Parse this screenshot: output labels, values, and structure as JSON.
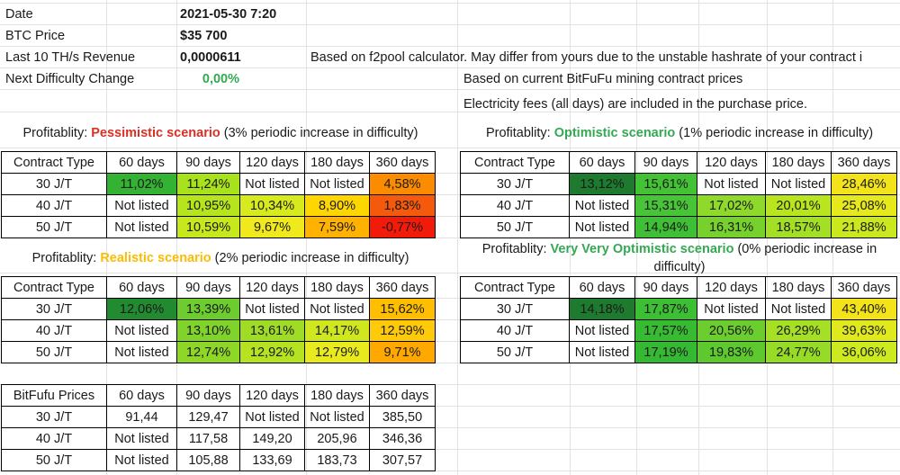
{
  "info": {
    "date_label": "Date",
    "date_value": "2021-05-30 7:20",
    "btc_label": "BTC Price",
    "btc_value": "$35 700",
    "rev_label": "Last 10 TH/s Revenue",
    "rev_value": "0,0000611",
    "rev_note": "Based on f2pool calculator. May differ from yours due to the unstable hashrate of your contract i",
    "diff_label": "Next Difficulty Change",
    "diff_value": "0,00%",
    "note_prices": "Based on current BitFuFu mining contract prices",
    "note_fees": "Electricity fees (all days) are included in the purchase price."
  },
  "header_row": [
    "Contract Type",
    "60 days",
    "90 days",
    "120 days",
    "180 days",
    "360 days"
  ],
  "prices_header_row": [
    "BitFufu Prices",
    "60 days",
    "90 days",
    "120 days",
    "180 days",
    "360 days"
  ],
  "pessimistic": {
    "prefix": "Profitablity: ",
    "name": "Pessimistic scenario",
    "suffix": " (3% periodic increase in difficulty)",
    "name_color": "#d93025",
    "rows": [
      {
        "type": "30 J/T",
        "cells": [
          {
            "v": "11,02%",
            "bg": "#34b233"
          },
          {
            "v": "11,24%",
            "bg": "#a8e21c"
          },
          {
            "v": "Not listed",
            "bg": "#ffffff"
          },
          {
            "v": "Not listed",
            "bg": "#ffffff"
          },
          {
            "v": "4,58%",
            "bg": "#fb8c00"
          }
        ]
      },
      {
        "type": "40 J/T",
        "cells": [
          {
            "v": "Not listed",
            "bg": "#ffffff"
          },
          {
            "v": "10,95%",
            "bg": "#b7e51d"
          },
          {
            "v": "10,34%",
            "bg": "#d7ea1e"
          },
          {
            "v": "8,90%",
            "bg": "#ffd700"
          },
          {
            "v": "1,83%",
            "bg": "#f55a0c"
          }
        ]
      },
      {
        "type": "50 J/T",
        "cells": [
          {
            "v": "Not listed",
            "bg": "#ffffff"
          },
          {
            "v": "10,59%",
            "bg": "#c8e81e"
          },
          {
            "v": "9,67%",
            "bg": "#f0e91b"
          },
          {
            "v": "7,59%",
            "bg": "#ffb300"
          },
          {
            "v": "-0,77%",
            "bg": "#f21b0a"
          }
        ]
      }
    ]
  },
  "optimistic": {
    "prefix": "Profitablity: ",
    "name": "Optimistic scenario",
    "suffix": " (1% periodic increase in difficulty)",
    "name_color": "#34a853",
    "rows": [
      {
        "type": "30 J/T",
        "cells": [
          {
            "v": "13,12%",
            "bg": "#1e7a2e"
          },
          {
            "v": "15,61%",
            "bg": "#44c236"
          },
          {
            "v": "Not listed",
            "bg": "#ffffff"
          },
          {
            "v": "Not listed",
            "bg": "#ffffff"
          },
          {
            "v": "28,46%",
            "bg": "#f2e31b"
          }
        ]
      },
      {
        "type": "40 J/T",
        "cells": [
          {
            "v": "Not listed",
            "bg": "#ffffff"
          },
          {
            "v": "15,31%",
            "bg": "#48c438"
          },
          {
            "v": "17,02%",
            "bg": "#8fd92a"
          },
          {
            "v": "20,01%",
            "bg": "#b9e51f"
          },
          {
            "v": "25,08%",
            "bg": "#e6ea1c"
          }
        ]
      },
      {
        "type": "50 J/T",
        "cells": [
          {
            "v": "Not listed",
            "bg": "#ffffff"
          },
          {
            "v": "14,94%",
            "bg": "#3fbf35"
          },
          {
            "v": "16,31%",
            "bg": "#76d12c"
          },
          {
            "v": "18,57%",
            "bg": "#a3df24"
          },
          {
            "v": "21,88%",
            "bg": "#cbe81f"
          }
        ]
      }
    ]
  },
  "realistic": {
    "prefix": "Profitablity: ",
    "name": "Realistic scenario",
    "suffix": " (2% periodic increase in difficulty)",
    "name_color": "#fbbc04",
    "rows": [
      {
        "type": "30 J/T",
        "cells": [
          {
            "v": "12,06%",
            "bg": "#228b31"
          },
          {
            "v": "13,39%",
            "bg": "#6dcc2f"
          },
          {
            "v": "Not listed",
            "bg": "#ffffff"
          },
          {
            "v": "Not listed",
            "bg": "#ffffff"
          },
          {
            "v": "15,62%",
            "bg": "#ffbf00"
          }
        ]
      },
      {
        "type": "40 J/T",
        "cells": [
          {
            "v": "Not listed",
            "bg": "#ffffff"
          },
          {
            "v": "13,10%",
            "bg": "#7fd32b"
          },
          {
            "v": "13,61%",
            "bg": "#9fdc26"
          },
          {
            "v": "14,17%",
            "bg": "#cfe71f"
          },
          {
            "v": "12,59%",
            "bg": "#ffca0a"
          }
        ]
      },
      {
        "type": "50 J/T",
        "cells": [
          {
            "v": "Not listed",
            "bg": "#ffffff"
          },
          {
            "v": "12,74%",
            "bg": "#8ed729"
          },
          {
            "v": "12,92%",
            "bg": "#b5e321"
          },
          {
            "v": "12,79%",
            "bg": "#e9ea1d"
          },
          {
            "v": "9,71%",
            "bg": "#ffa800"
          }
        ]
      }
    ]
  },
  "very_optimistic": {
    "prefix": "Profitablity: ",
    "name": "Very Very Optimistic scenario",
    "suffix": " (0% periodic increase in difficulty)",
    "name_color": "#34a853",
    "rows": [
      {
        "type": "30 J/T",
        "cells": [
          {
            "v": "14,18%",
            "bg": "#1e7a2e"
          },
          {
            "v": "17,87%",
            "bg": "#3cbf34"
          },
          {
            "v": "Not listed",
            "bg": "#ffffff"
          },
          {
            "v": "Not listed",
            "bg": "#ffffff"
          },
          {
            "v": "43,40%",
            "bg": "#f2e31b"
          }
        ]
      },
      {
        "type": "40 J/T",
        "cells": [
          {
            "v": "Not listed",
            "bg": "#ffffff"
          },
          {
            "v": "17,57%",
            "bg": "#37bb33"
          },
          {
            "v": "20,56%",
            "bg": "#6ccd2e"
          },
          {
            "v": "26,29%",
            "bg": "#a6e024"
          },
          {
            "v": "39,63%",
            "bg": "#dfe91e"
          }
        ]
      },
      {
        "type": "50 J/T",
        "cells": [
          {
            "v": "Not listed",
            "bg": "#ffffff"
          },
          {
            "v": "17,19%",
            "bg": "#35b932"
          },
          {
            "v": "19,83%",
            "bg": "#5dc92f"
          },
          {
            "v": "24,77%",
            "bg": "#96dc27"
          },
          {
            "v": "36,06%",
            "bg": "#ccea1f"
          }
        ]
      }
    ]
  },
  "prices": {
    "rows": [
      {
        "type": "30 J/T",
        "cells": [
          "91,44",
          "129,47",
          "Not listed",
          "Not listed",
          "385,50"
        ]
      },
      {
        "type": "40 J/T",
        "cells": [
          "Not listed",
          "117,58",
          "149,20",
          "205,96",
          "346,36"
        ]
      },
      {
        "type": "50 J/T",
        "cells": [
          "Not listed",
          "105,88",
          "133,69",
          "183,73",
          "307,57"
        ]
      }
    ]
  }
}
